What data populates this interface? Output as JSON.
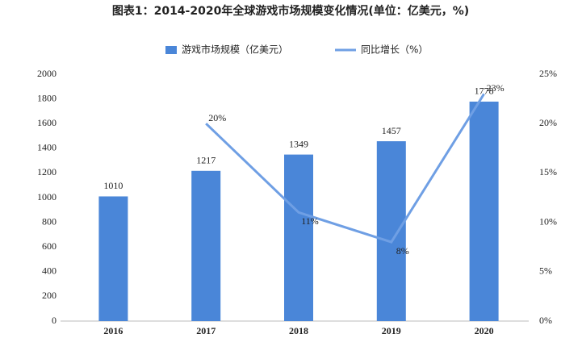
{
  "chart_data": {
    "type": "bar-line",
    "title": "图表1：2014-2020年全球游戏市场规模变化情况(单位：亿美元，%)",
    "categories": [
      "2016",
      "2017",
      "2018",
      "2019",
      "2020"
    ],
    "series": [
      {
        "name": "游戏市场规模（亿美元）",
        "type": "bar",
        "color": "#4a86d8",
        "values": [
          1010,
          1217,
          1349,
          1457,
          1778
        ]
      },
      {
        "name": "同比增长（%）",
        "type": "line",
        "axis": "y2",
        "color": "#6f9fe4",
        "values": [
          null,
          20,
          11,
          8,
          23
        ],
        "value_labels": [
          null,
          "20%",
          "11%",
          "8%",
          "23%"
        ]
      }
    ],
    "ylim": [
      0,
      2000
    ],
    "yticks": [
      0,
      200,
      400,
      600,
      800,
      1000,
      1200,
      1400,
      1600,
      1800,
      2000
    ],
    "y2lim": [
      0,
      25
    ],
    "y2ticks": [
      {
        "value": 0,
        "label": "0%"
      },
      {
        "value": 5,
        "label": "5%"
      },
      {
        "value": 10,
        "label": "10%"
      },
      {
        "value": 15,
        "label": "15%"
      },
      {
        "value": 20,
        "label": "20%"
      },
      {
        "value": 25,
        "label": "25%"
      }
    ],
    "grid": false
  }
}
